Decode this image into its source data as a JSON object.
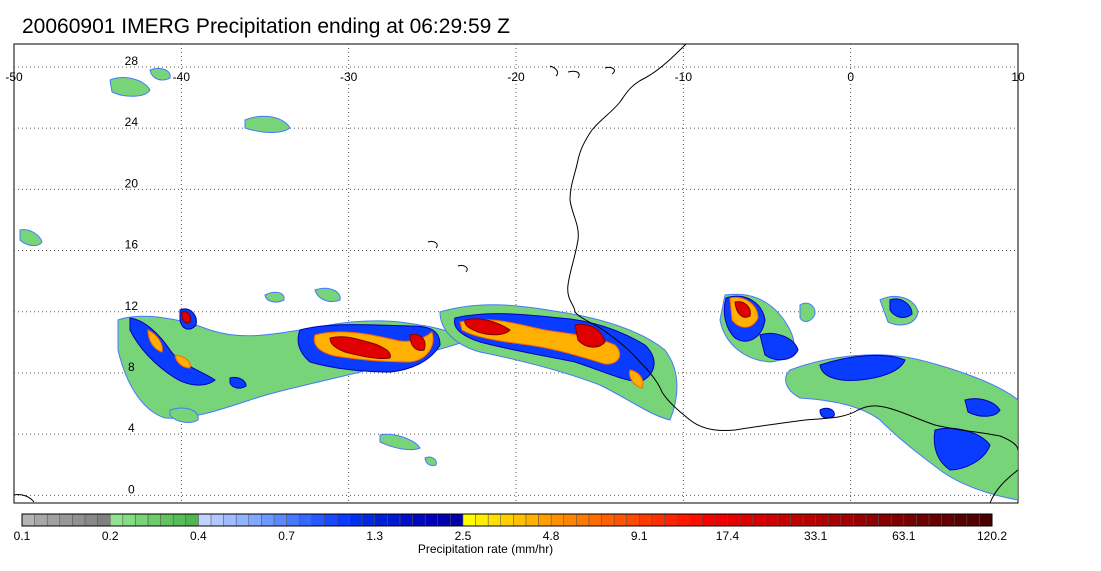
{
  "title": "20060901 IMERG Precipitation ending at 06:29:59 Z",
  "map": {
    "lon_ticks": [
      "-50",
      "-40",
      "-30",
      "-20",
      "-10",
      "0",
      "10"
    ],
    "lat_ticks": [
      "28",
      "24",
      "20",
      "16",
      "12",
      "8",
      "4",
      "0"
    ],
    "extent": {
      "lon": [
        -50,
        10
      ],
      "lat": [
        -0.5,
        29.5
      ]
    },
    "grid": "dotted"
  },
  "colorbar": {
    "label": "Precipitation rate (mm/hr)",
    "tick_labels": [
      "0.1",
      "0.2",
      "0.4",
      "0.7",
      "1.3",
      "2.5",
      "4.8",
      "9.1",
      "17.4",
      "33.1",
      "63.1",
      "120.2"
    ],
    "colors": [
      "#b4b4b4",
      "#a8a8a8",
      "#a0a0a0",
      "#989898",
      "#909090",
      "#888888",
      "#808080",
      "#90e490",
      "#84dc84",
      "#78d478",
      "#6ccc6c",
      "#60c460",
      "#58bc58",
      "#50b450",
      "#c0d4ff",
      "#b0c8ff",
      "#a0bcff",
      "#90b4ff",
      "#80a8ff",
      "#6c98ff",
      "#5a88ff",
      "#4878ff",
      "#3868ff",
      "#2858ff",
      "#1848ff",
      "#0a3cff",
      "#0030f0",
      "#0028e0",
      "#0020d8",
      "#0018d0",
      "#0010c8",
      "#0008c0",
      "#0000b8",
      "#0000b0",
      "#0000a8",
      "#ffff00",
      "#fff000",
      "#ffe000",
      "#ffd000",
      "#ffc000",
      "#ffb000",
      "#ffa000",
      "#ff9000",
      "#ff8400",
      "#ff7800",
      "#ff6c00",
      "#ff6000",
      "#ff5400",
      "#ff4800",
      "#ff3c00",
      "#ff3000",
      "#ff2400",
      "#ff1800",
      "#ff0c00",
      "#f80000",
      "#f00000",
      "#e80000",
      "#e00000",
      "#d80000",
      "#d00000",
      "#c80000",
      "#c00000",
      "#b80000",
      "#b00000",
      "#a80000",
      "#a00000",
      "#980000",
      "#900000",
      "#880000",
      "#800000",
      "#780000",
      "#700000",
      "#680000",
      "#600000",
      "#580000",
      "#500000",
      "#480000"
    ]
  }
}
